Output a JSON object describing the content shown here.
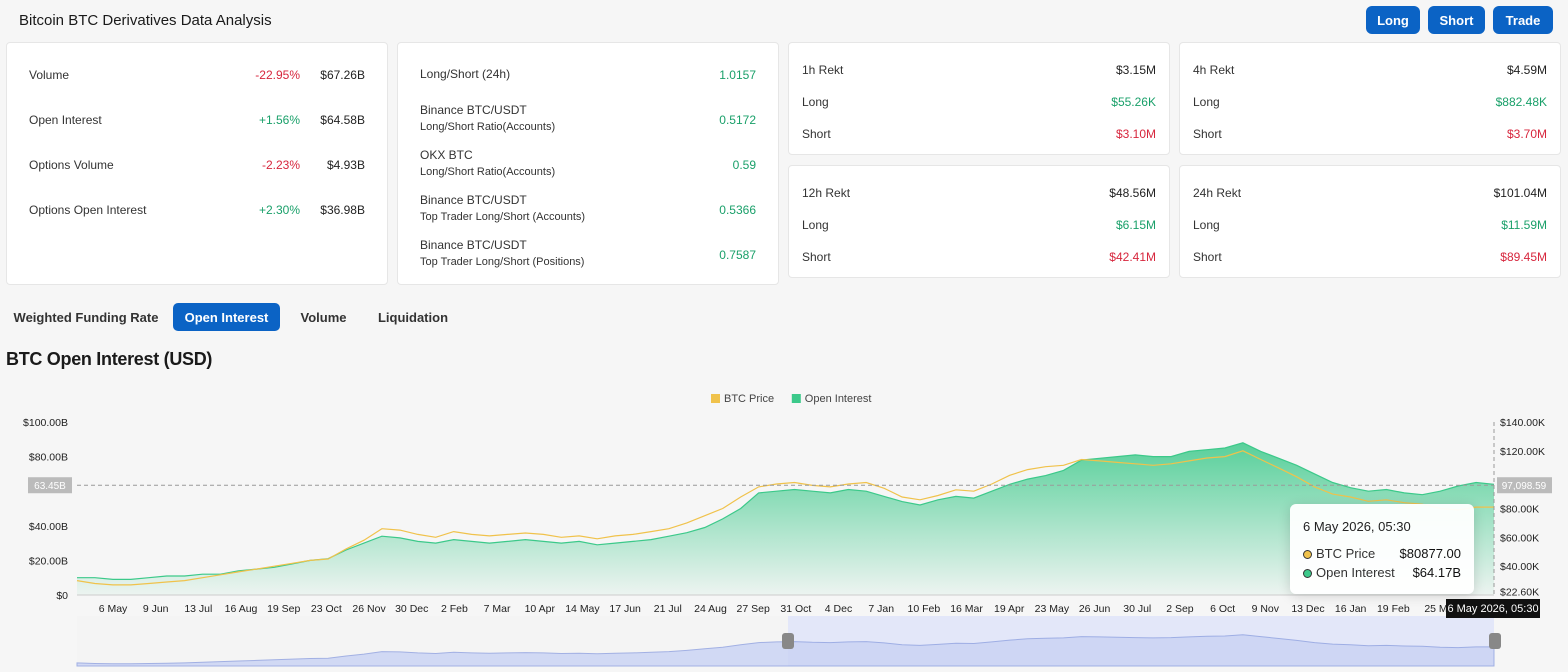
{
  "header": {
    "title": "Bitcoin BTC Derivatives Data Analysis",
    "buttons": [
      "Long",
      "Short",
      "Trade"
    ]
  },
  "stats": [
    {
      "label": "Volume",
      "change": "-22.95%",
      "value": "$67.26B",
      "trend": "down"
    },
    {
      "label": "Open Interest",
      "change": "+1.56%",
      "value": "$64.58B",
      "trend": "up"
    },
    {
      "label": "Options Volume",
      "change": "-2.23%",
      "value": "$4.93B",
      "trend": "down"
    },
    {
      "label": "Options Open Interest",
      "change": "+2.30%",
      "value": "$36.98B",
      "trend": "up"
    }
  ],
  "ratios": [
    {
      "line1": "Long/Short (24h)",
      "line2": "",
      "value": "1.0157"
    },
    {
      "line1": "Binance BTC/USDT",
      "line2": "Long/Short Ratio(Accounts)",
      "value": "0.5172"
    },
    {
      "line1": "OKX BTC",
      "line2": "Long/Short Ratio(Accounts)",
      "value": "0.59"
    },
    {
      "line1": "Binance BTC/USDT",
      "line2": "Top Trader Long/Short (Accounts)",
      "value": "0.5366"
    },
    {
      "line1": "Binance BTC/USDT",
      "line2": "Top Trader Long/Short (Positions)",
      "value": "0.7587"
    }
  ],
  "rekt": [
    {
      "title": "1h Rekt",
      "total": "$3.15M",
      "long_label": "Long",
      "long": "$55.26K",
      "short_label": "Short",
      "short": "$3.10M"
    },
    {
      "title": "4h Rekt",
      "total": "$4.59M",
      "long_label": "Long",
      "long": "$882.48K",
      "short_label": "Short",
      "short": "$3.70M"
    },
    {
      "title": "12h Rekt",
      "total": "$48.56M",
      "long_label": "Long",
      "long": "$6.15M",
      "short_label": "Short",
      "short": "$42.41M"
    },
    {
      "title": "24h Rekt",
      "total": "$101.04M",
      "long_label": "Long",
      "long": "$11.59M",
      "short_label": "Short",
      "short": "$89.45M"
    }
  ],
  "tabs": [
    "Weighted Funding Rate",
    "Open Interest",
    "Volume",
    "Liquidation"
  ],
  "active_tab": "Open Interest",
  "chart_title": "BTC Open Interest (USD)",
  "colors": {
    "accent": "#0b63c5",
    "up": "#1aa06a",
    "down": "#d7263d",
    "btc_price": "#f0c24b",
    "open_interest": "#3cc98a"
  },
  "chart_data": {
    "type": "area",
    "legend": [
      "BTC Price",
      "Open Interest"
    ],
    "legend_position": "top-center",
    "left_axis": {
      "ticks": [
        "$0",
        "$20.00B",
        "$40.00B",
        "$80.00B",
        "$100.00B"
      ],
      "range": [
        0,
        100
      ],
      "unit": "B USD"
    },
    "right_axis": {
      "ticks": [
        "$22.60K",
        "$40.00K",
        "$60.00K",
        "$80.00K",
        "$120.00K",
        "$140.00K"
      ],
      "range": [
        20,
        140
      ],
      "unit": "K USD"
    },
    "crosshair": {
      "left_label": "63.45B",
      "right_label": "97,098.59"
    },
    "x_labels": [
      "6 May",
      "9 Jun",
      "13 Jul",
      "16 Aug",
      "19 Sep",
      "23 Oct",
      "26 Nov",
      "30 Dec",
      "2 Feb",
      "7 Mar",
      "10 Apr",
      "14 May",
      "17 Jun",
      "21 Jul",
      "24 Aug",
      "27 Sep",
      "31 Oct",
      "4 Dec",
      "7 Jan",
      "10 Feb",
      "16 Mar",
      "19 Apr",
      "23 May",
      "26 Jun",
      "30 Jul",
      "2 Sep",
      "6 Oct",
      "9 Nov",
      "13 Dec",
      "16 Jan",
      "19 Feb",
      "25 M"
    ],
    "series": [
      {
        "name": "Open Interest",
        "values": [
          10,
          10,
          9,
          9,
          10,
          11,
          11,
          12,
          12,
          14,
          15,
          16,
          18,
          20,
          21,
          26,
          30,
          34,
          33,
          31,
          30,
          32,
          31,
          30,
          31,
          32,
          31,
          30,
          31,
          29,
          30,
          31,
          32,
          34,
          36,
          39,
          44,
          50,
          59,
          60,
          61,
          60,
          59,
          61,
          60,
          57,
          54,
          52,
          55,
          57,
          56,
          60,
          64,
          67,
          69,
          72,
          78,
          79,
          80,
          81,
          80,
          80,
          83,
          84,
          85,
          88,
          83,
          79,
          75,
          70,
          65,
          62,
          60,
          61,
          59,
          58,
          60,
          63,
          65,
          64
        ]
      },
      {
        "name": "BTC Price",
        "values": [
          30,
          28,
          27,
          27,
          28,
          29,
          30,
          32,
          34,
          36,
          38,
          40,
          42,
          44,
          45,
          52,
          58,
          66,
          65,
          62,
          60,
          64,
          62,
          61,
          62,
          63,
          62,
          60,
          61,
          59,
          61,
          62,
          64,
          66,
          70,
          75,
          80,
          88,
          95,
          97,
          98,
          96,
          95,
          97,
          98,
          94,
          88,
          86,
          89,
          93,
          92,
          97,
          103,
          107,
          109,
          110,
          114,
          113,
          112,
          111,
          110,
          111,
          113,
          115,
          116,
          120,
          114,
          108,
          102,
          95,
          90,
          88,
          85,
          86,
          84,
          83,
          80,
          79,
          81,
          81
        ]
      }
    ],
    "tooltip": {
      "date": "6 May 2026, 05:30",
      "rows": [
        {
          "label": "BTC Price",
          "value": "$80877.00"
        },
        {
          "label": "Open Interest",
          "value": "$64.17B"
        }
      ]
    },
    "time_badge": "6 May 2026, 05:30"
  }
}
